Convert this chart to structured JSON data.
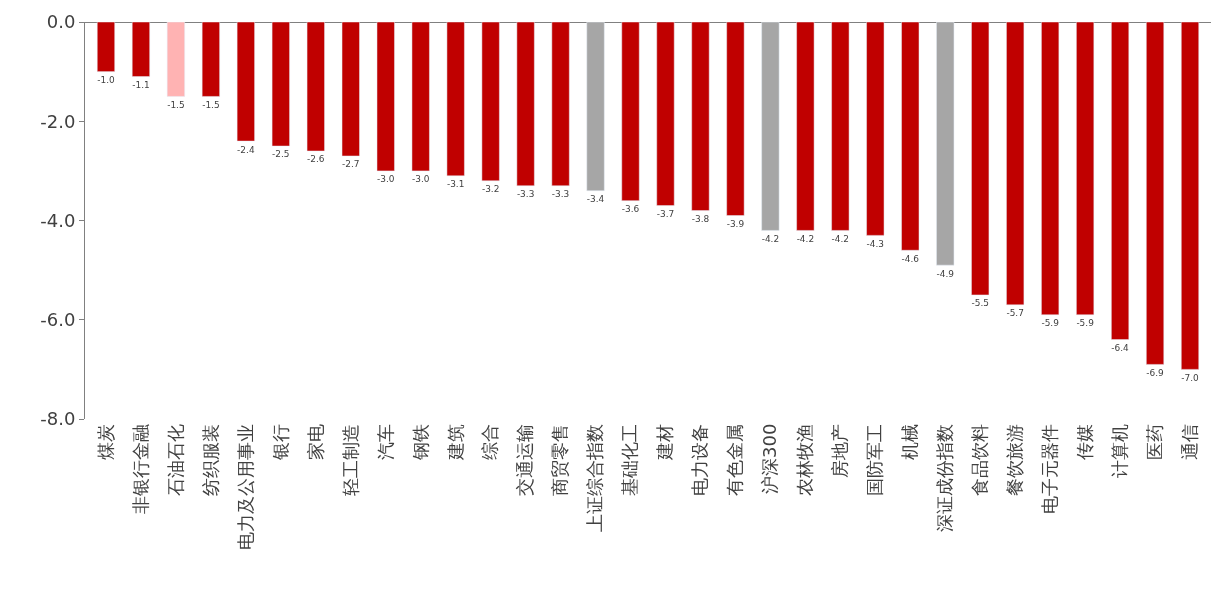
{
  "chart_data": {
    "type": "bar",
    "categories": [
      "煤炭",
      "非银行金融",
      "石油石化",
      "纺织服装",
      "电力及公用事业",
      "银行",
      "家电",
      "轻工制造",
      "汽车",
      "钢铁",
      "建筑",
      "综合",
      "交通运输",
      "商贸零售",
      "上证综合指数",
      "基础化工",
      "建材",
      "电力设备",
      "有色金属",
      "沪深300",
      "农林牧渔",
      "房地产",
      "国防军工",
      "机械",
      "深证成份指数",
      "食品饮料",
      "餐饮旅游",
      "电子元器件",
      "传媒",
      "计算机",
      "医药",
      "通信"
    ],
    "values": [
      -1.0,
      -1.1,
      -1.5,
      -1.5,
      -2.4,
      -2.5,
      -2.6,
      -2.7,
      -3.0,
      -3.0,
      -3.1,
      -3.2,
      -3.3,
      -3.3,
      -3.4,
      -3.6,
      -3.7,
      -3.8,
      -3.9,
      -4.2,
      -4.2,
      -4.2,
      -4.3,
      -4.6,
      -4.9,
      -5.5,
      -5.7,
      -5.9,
      -5.9,
      -6.4,
      -6.9,
      -7.0
    ],
    "colors": [
      "#c00000",
      "#c00000",
      "#ffb3b3",
      "#c00000",
      "#c00000",
      "#c00000",
      "#c00000",
      "#c00000",
      "#c00000",
      "#c00000",
      "#c00000",
      "#c00000",
      "#c00000",
      "#c00000",
      "#a6a6a6",
      "#c00000",
      "#c00000",
      "#c00000",
      "#c00000",
      "#a6a6a6",
      "#c00000",
      "#c00000",
      "#c00000",
      "#c00000",
      "#a6a6a6",
      "#c00000",
      "#c00000",
      "#c00000",
      "#c00000",
      "#c00000",
      "#c00000",
      "#c00000"
    ],
    "ylim": [
      -8,
      0
    ],
    "yticks": [
      {
        "value": -8,
        "label": "-8.0"
      },
      {
        "value": -6,
        "label": "-6.0"
      },
      {
        "value": -4,
        "label": "-4.0"
      },
      {
        "value": -2,
        "label": "-2.0"
      },
      {
        "value": 0,
        "label": "0.0"
      }
    ],
    "value_labels": [
      "-1.0",
      "-1.1",
      "-1.5",
      "-1.5",
      "-2.4",
      "-2.5",
      "-2.6",
      "-2.7",
      "-3.0",
      "-3.0",
      "-3.1",
      "-3.2",
      "-3.3",
      "-3.3",
      "-3.4",
      "-3.6",
      "-3.7",
      "-3.8",
      "-3.9",
      "-4.2",
      "-4.2",
      "-4.2",
      "-4.3",
      "-4.6",
      "-4.9",
      "-5.5",
      "-5.7",
      "-5.9",
      "-5.9",
      "-6.4",
      "-6.9",
      "-7.0"
    ]
  }
}
